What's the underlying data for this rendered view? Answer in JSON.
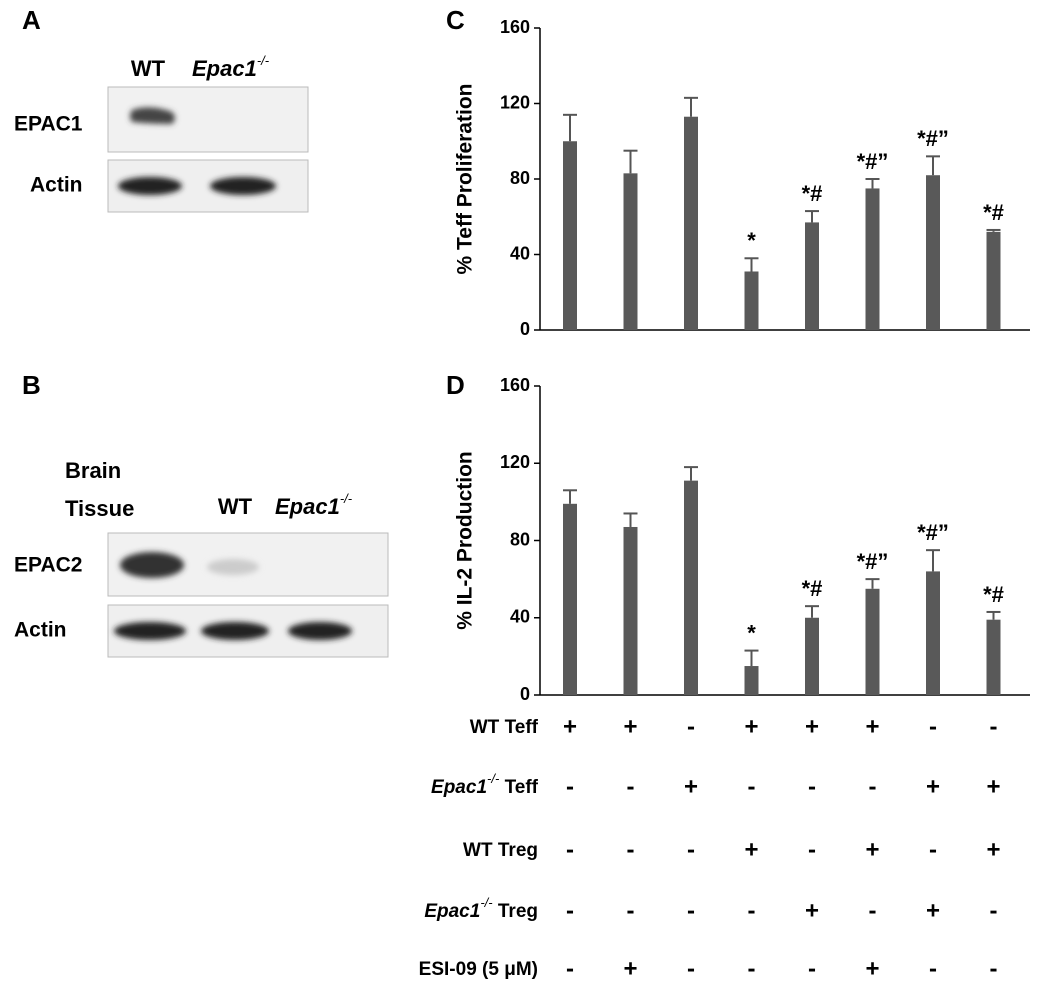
{
  "panels": [
    {
      "label": "A",
      "lanes": [
        "WT",
        {
          "gene": "Epac1",
          "sup": "-/-"
        }
      ],
      "rows": [
        "EPAC1",
        "Actin"
      ]
    },
    {
      "label": "B",
      "lanes": [
        [
          "Brain",
          "Tissue"
        ],
        "WT",
        {
          "gene": "Epac1",
          "sup": "-/-"
        }
      ],
      "rows": [
        "EPAC2",
        "Actin"
      ]
    }
  ],
  "chart_data": [
    {
      "type": "bar",
      "label": "C",
      "y_label": "% Teff Proliferation",
      "color": "#595959",
      "values": [
        100,
        83,
        113,
        31,
        57,
        75,
        82,
        52
      ],
      "errors": [
        14,
        12,
        10,
        7,
        6,
        5,
        10,
        1
      ],
      "annotations": [
        null,
        null,
        null,
        "*",
        "*#",
        "*#”",
        "*#”",
        "*#"
      ],
      "ylim": [
        0,
        160
      ],
      "yticks": [
        0,
        40,
        80,
        120,
        160
      ]
    },
    {
      "type": "bar",
      "label": "D",
      "y_label": "% IL-2 Production",
      "color": "#595959",
      "values": [
        99,
        87,
        111,
        15,
        40,
        55,
        64,
        39
      ],
      "errors": [
        7,
        7,
        7,
        8,
        6,
        5,
        11,
        4
      ],
      "annotations": [
        null,
        null,
        null,
        "*",
        "*#",
        "*#”",
        "*#”",
        "*#"
      ],
      "ylim": [
        0,
        160
      ],
      "yticks": [
        0,
        40,
        80,
        120,
        160
      ]
    }
  ],
  "conditions": [
    {
      "label": "WT Teff",
      "marks": [
        "+",
        "+",
        "-",
        "+",
        "+",
        "+",
        "-",
        "-"
      ]
    },
    {
      "gene": "Epac1",
      "sup": "-/-",
      "label": " Teff",
      "marks": [
        "-",
        "-",
        "+",
        "-",
        "-",
        "-",
        "+",
        "+"
      ]
    },
    {
      "label": "WT Treg",
      "marks": [
        "-",
        "-",
        "-",
        "+",
        "-",
        "+",
        "-",
        "+"
      ]
    },
    {
      "gene": "Epac1",
      "sup": "-/-",
      "label": " Treg",
      "marks": [
        "-",
        "-",
        "-",
        "-",
        "+",
        "-",
        "+",
        "-"
      ]
    },
    {
      "label": "ESI-09 (5 μM)",
      "marks": [
        "-",
        "+",
        "-",
        "-",
        "-",
        "+",
        "-",
        "-"
      ]
    }
  ]
}
